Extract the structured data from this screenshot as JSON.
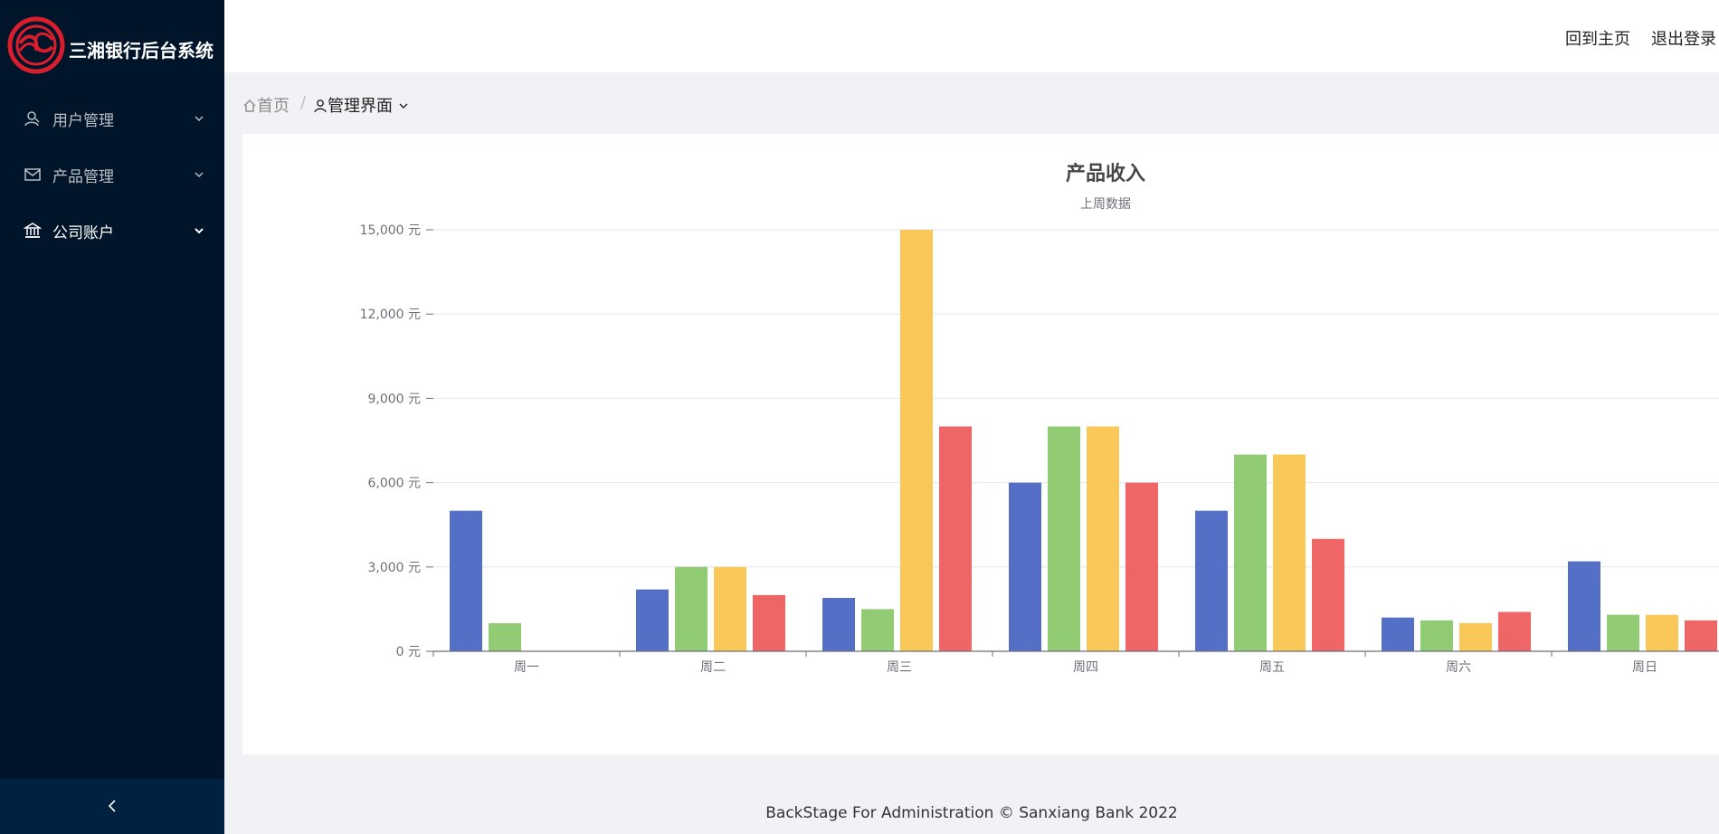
{
  "sidebar": {
    "brand_title": "三湘银行后台系统",
    "items": [
      {
        "label": "用户管理",
        "icon": "user-icon"
      },
      {
        "label": "产品管理",
        "icon": "mail-icon"
      },
      {
        "label": "公司账户",
        "icon": "bank-icon"
      }
    ],
    "collapse_icon": "chevron-left-icon"
  },
  "header": {
    "home_link": "回到主页",
    "logout_link": "退出登录"
  },
  "breadcrumb": {
    "home": "首页",
    "separator": "/",
    "current": "管理界面"
  },
  "colors": {
    "sidebar_bg": "#001529",
    "series": [
      "#5470c6",
      "#91cc75",
      "#fac858",
      "#ee6666"
    ]
  },
  "chart_data": {
    "type": "bar",
    "title": "产品收入",
    "subtitle": "上周数据",
    "categories": [
      "周一",
      "周二",
      "周三",
      "周四",
      "周五",
      "周六",
      "周日"
    ],
    "series": [
      {
        "values": [
          5000,
          2200,
          1900,
          6000,
          5000,
          1200,
          3200
        ]
      },
      {
        "values": [
          1000,
          3000,
          1500,
          8000,
          7000,
          1100,
          1300
        ]
      },
      {
        "values": [
          0,
          3000,
          15000,
          8000,
          7000,
          1000,
          1300
        ]
      },
      {
        "values": [
          0,
          2000,
          8000,
          6000,
          4000,
          1400,
          1100
        ]
      }
    ],
    "y_ticks": [
      "0 元",
      "3,000 元",
      "6,000 元",
      "9,000 元",
      "12,000 元",
      "15,000 元"
    ],
    "ylim": [
      0,
      15000
    ],
    "grid": true
  },
  "footer": {
    "text": "BackStage For Administration © Sanxiang Bank 2022"
  }
}
